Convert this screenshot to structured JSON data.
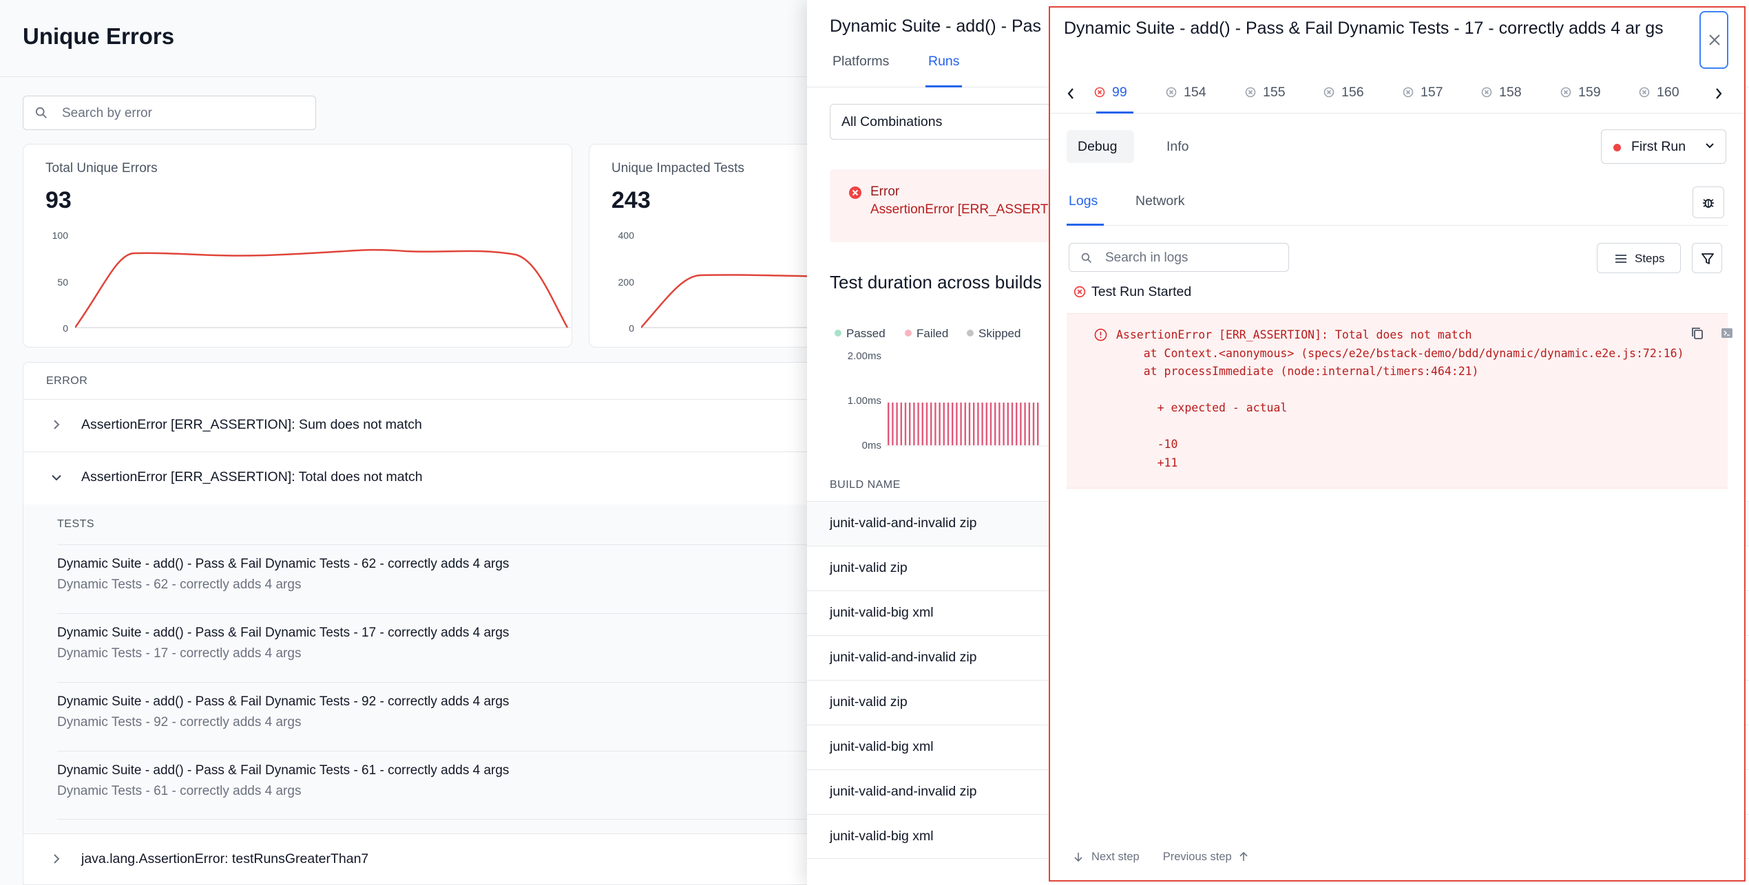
{
  "errors_page": {
    "title": "Unique Errors",
    "search_placeholder": "Search by error",
    "stats": [
      {
        "label": "Total Unique Errors",
        "value": "93",
        "yticks": [
          "100",
          "50",
          "0"
        ]
      },
      {
        "label": "Unique Impacted Tests",
        "value": "243",
        "yticks": [
          "400",
          "200",
          "0"
        ]
      }
    ],
    "table_header": "ERROR",
    "errors": [
      "AssertionError [ERR_ASSERTION]: Sum does not match",
      "AssertionError [ERR_ASSERTION]: Total does not match",
      "java.lang.AssertionError: testRunsGreaterThan7"
    ],
    "tests_header": "TESTS",
    "tests": [
      {
        "title": "Dynamic Suite - add() - Pass & Fail Dynamic Tests - 62 - correctly adds 4 args",
        "subtitle": "Dynamic Tests - 62 - correctly adds 4 args"
      },
      {
        "title": "Dynamic Suite - add() - Pass & Fail Dynamic Tests - 17 - correctly adds 4 args",
        "subtitle": "Dynamic Tests - 17 - correctly adds 4 args"
      },
      {
        "title": "Dynamic Suite - add() - Pass & Fail Dynamic Tests - 92 - correctly adds 4 args",
        "subtitle": "Dynamic Tests - 92 - correctly adds 4 args"
      },
      {
        "title": "Dynamic Suite - add() - Pass & Fail Dynamic Tests - 61 - correctly adds 4 args",
        "subtitle": "Dynamic Tests - 61 - correctly adds 4 args"
      }
    ]
  },
  "test_panel": {
    "title": "Dynamic Suite - add() - Pas",
    "tabs": [
      "Platforms",
      "Runs"
    ],
    "combination_select": "All Combinations",
    "error_label": "Error",
    "error_text": "AssertionError [ERR_ASSERTI",
    "duration_title": "Test duration across builds",
    "legend": [
      "Passed",
      "Failed",
      "Skipped"
    ],
    "duration_ticks": [
      "2.00ms",
      "1.00ms",
      "0ms"
    ],
    "build_header": "BUILD NAME",
    "builds": [
      "junit-valid-and-invalid zip",
      "junit-valid zip",
      "junit-valid-big xml",
      "junit-valid-and-invalid zip",
      "junit-valid zip",
      "junit-valid-big xml",
      "junit-valid-and-invalid zip",
      "junit-valid-big xml"
    ]
  },
  "run_panel": {
    "title": "Dynamic Suite - add() - Pass & Fail Dynamic Tests - 17 - correctly adds 4 ar gs",
    "runs": [
      "99",
      "154",
      "155",
      "156",
      "157",
      "158",
      "159",
      "160"
    ],
    "active_run": "99",
    "debug_tab": "Debug",
    "info_tab": "Info",
    "run_select": "First Run",
    "logs_tab": "Logs",
    "network_tab": "Network",
    "log_search_placeholder": "Search in logs",
    "steps_button": "Steps",
    "run_started": "Test Run Started",
    "log_error": "AssertionError [ERR_ASSERTION]: Total does not match\n    at Context.<anonymous> (specs/e2e/bstack-demo/bdd/dynamic/dynamic.e2e.js:72:16)\n    at processImmediate (node:internal/timers:464:21)\n\n      + expected - actual\n\n      -10\n      +11",
    "next_step": "Next step",
    "previous_step": "Previous step"
  },
  "colors": {
    "accent": "#2563eb",
    "error": "#ef4444",
    "passed": "#a7e3c8",
    "failed": "#f8b4c0",
    "skipped": "#c4c4c4"
  }
}
